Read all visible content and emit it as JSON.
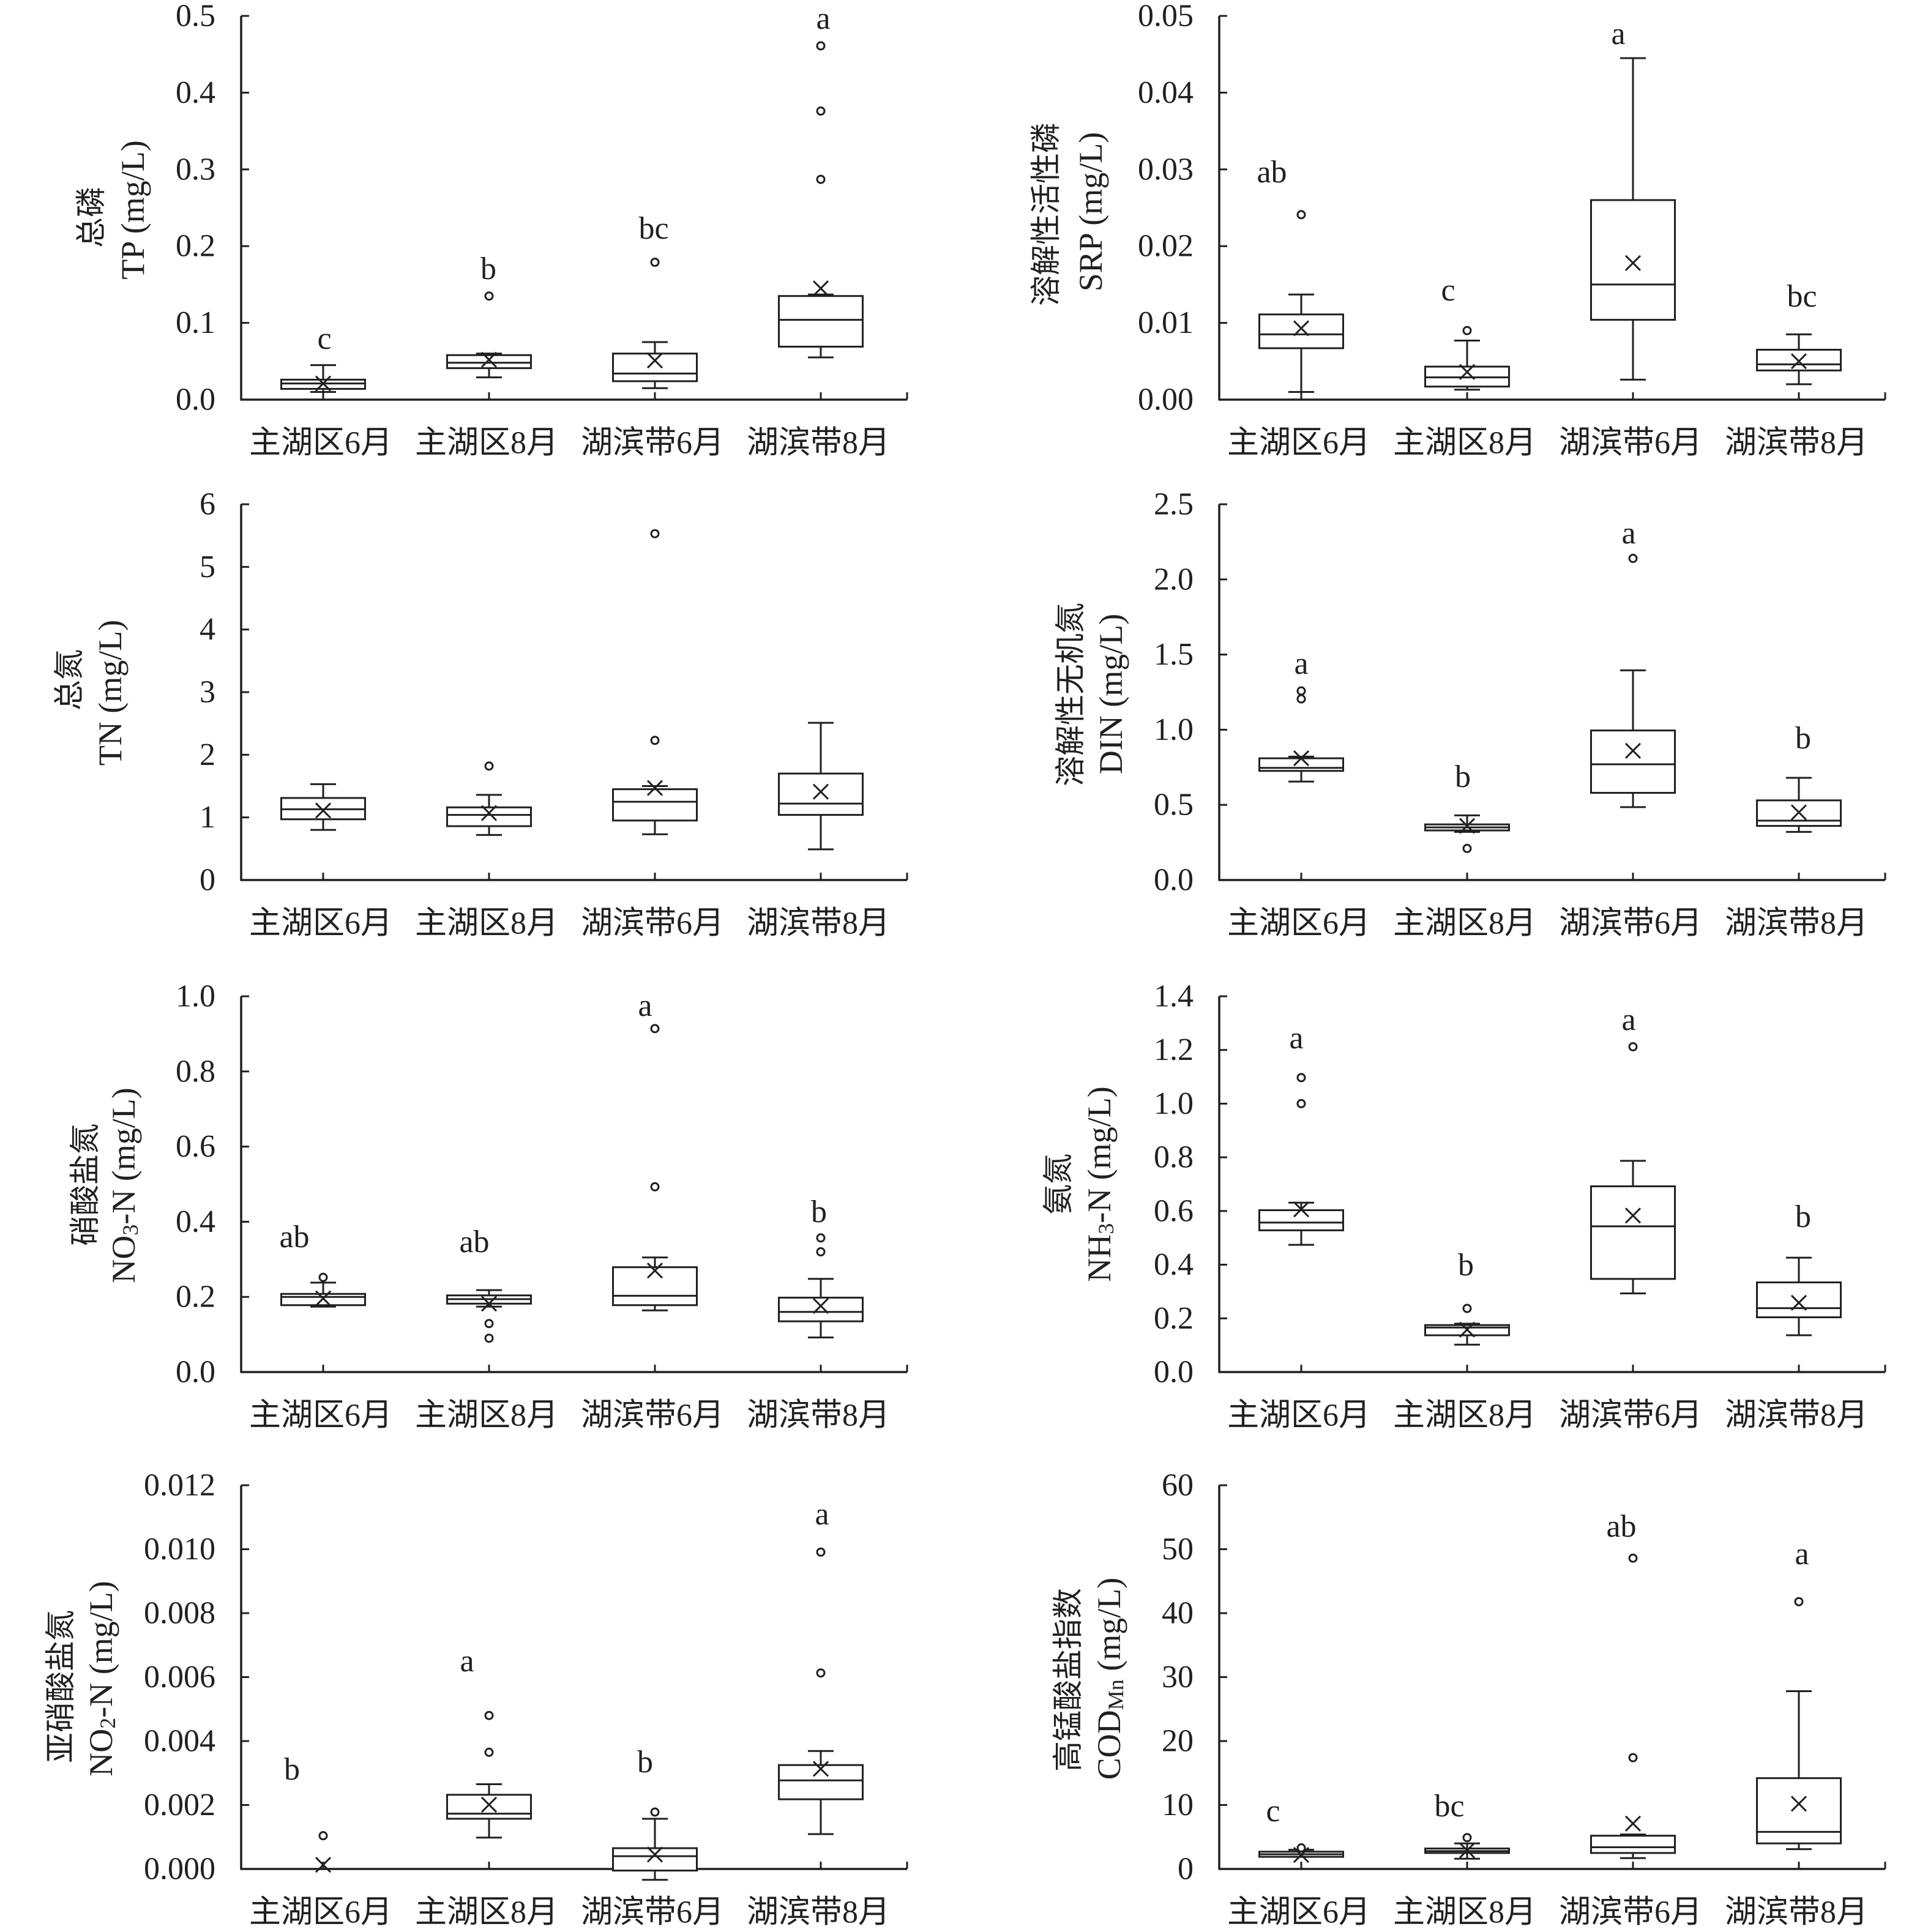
{
  "style": {
    "ink": "#231f20",
    "background": "#ffffff"
  },
  "chart_data": [
    {
      "type": "box",
      "ylabel_cn": "总磷",
      "ylabel_en": [
        {
          "t": "TP (mg/L)"
        }
      ],
      "ylim": [
        0,
        0.5
      ],
      "yticks": [
        0,
        0.1,
        0.2,
        0.3,
        0.4,
        0.5
      ],
      "ytick_labels": [
        "0.0",
        "0.1",
        "0.2",
        "0.3",
        "0.4",
        "0.5"
      ],
      "categories": [
        "主湖区6月",
        "主湖区8月",
        "湖滨带6月",
        "湖滨带8月"
      ],
      "boxes": [
        {
          "min": 0.01,
          "q1": 0.014,
          "median": 0.021,
          "q3": 0.026,
          "max": 0.045,
          "mean": 0.021,
          "outliers": [],
          "letter": "c"
        },
        {
          "min": 0.029,
          "q1": 0.041,
          "median": 0.048,
          "q3": 0.058,
          "max": 0.06,
          "mean": 0.052,
          "outliers": [
            0.135
          ],
          "letter": "b"
        },
        {
          "min": 0.015,
          "q1": 0.024,
          "median": 0.034,
          "q3": 0.06,
          "max": 0.075,
          "mean": 0.051,
          "outliers": [
            0.179
          ],
          "letter": "bc"
        },
        {
          "min": 0.055,
          "q1": 0.069,
          "median": 0.104,
          "q3": 0.135,
          "max": 0.137,
          "mean": 0.145,
          "outliers": [
            0.287,
            0.376,
            0.461
          ],
          "letter": "a"
        }
      ]
    },
    {
      "type": "box",
      "ylabel_cn": "溶解性活性磷",
      "ylabel_en": [
        {
          "t": "SRP (mg/L)"
        }
      ],
      "ylim": [
        0,
        0.05
      ],
      "yticks": [
        0,
        0.01,
        0.02,
        0.03,
        0.04,
        0.05
      ],
      "ytick_labels": [
        "0.00",
        "0.01",
        "0.02",
        "0.03",
        "0.04",
        "0.05"
      ],
      "categories": [
        "主湖区6月",
        "主湖区8月",
        "湖滨带6月",
        "湖滨带8月"
      ],
      "boxes": [
        {
          "min": 0.001,
          "q1": 0.0067,
          "median": 0.0085,
          "q3": 0.0111,
          "max": 0.0137,
          "mean": 0.0093,
          "outliers": [
            0.0241
          ],
          "letter": "ab"
        },
        {
          "min": 0.0013,
          "q1": 0.0017,
          "median": 0.0029,
          "q3": 0.0043,
          "max": 0.0077,
          "mean": 0.0036,
          "outliers": [
            0.009
          ],
          "letter": "c"
        },
        {
          "min": 0.0026,
          "q1": 0.0104,
          "median": 0.015,
          "q3": 0.026,
          "max": 0.0445,
          "mean": 0.0178,
          "outliers": [],
          "letter": "a"
        },
        {
          "min": 0.002,
          "q1": 0.0038,
          "median": 0.0046,
          "q3": 0.0065,
          "max": 0.0085,
          "mean": 0.005,
          "outliers": [],
          "letter": "bc"
        }
      ]
    },
    {
      "type": "box",
      "ylabel_cn": "总氮",
      "ylabel_en": [
        {
          "t": "TN (mg/L)"
        }
      ],
      "ylim": [
        0,
        6
      ],
      "yticks": [
        0,
        1,
        2,
        3,
        4,
        5,
        6
      ],
      "ytick_labels": [
        "0",
        "1",
        "2",
        "3",
        "4",
        "5",
        "6"
      ],
      "categories": [
        "主湖区6月",
        "主湖区8月",
        "湖滨带6月",
        "湖滨带8月"
      ],
      "boxes": [
        {
          "min": 0.8,
          "q1": 0.97,
          "median": 1.13,
          "q3": 1.31,
          "max": 1.53,
          "mean": 1.11,
          "outliers": []
        },
        {
          "min": 0.72,
          "q1": 0.86,
          "median": 1.04,
          "q3": 1.16,
          "max": 1.36,
          "mean": 1.07,
          "outliers": [
            1.82
          ]
        },
        {
          "min": 0.73,
          "q1": 0.95,
          "median": 1.25,
          "q3": 1.45,
          "max": 1.5,
          "mean": 1.47,
          "outliers": [
            2.23,
            5.53
          ]
        },
        {
          "min": 0.49,
          "q1": 1.04,
          "median": 1.22,
          "q3": 1.7,
          "max": 2.51,
          "mean": 1.41,
          "outliers": []
        }
      ]
    },
    {
      "type": "box",
      "ylabel_cn": "溶解性无机氮",
      "ylabel_en": [
        {
          "t": "DIN (mg/L)"
        }
      ],
      "ylim": [
        0,
        2.5
      ],
      "yticks": [
        0,
        0.5,
        1.0,
        1.5,
        2.0,
        2.5
      ],
      "ytick_labels": [
        "0.0",
        "0.5",
        "1.0",
        "1.5",
        "2.0",
        "2.5"
      ],
      "categories": [
        "主湖区6月",
        "主湖区8月",
        "湖滨带6月",
        "湖滨带8月"
      ],
      "boxes": [
        {
          "min": 0.655,
          "q1": 0.726,
          "median": 0.746,
          "q3": 0.81,
          "max": 0.821,
          "mean": 0.81,
          "outliers": [
            1.205,
            1.258
          ],
          "letter": "a"
        },
        {
          "min": 0.32,
          "q1": 0.33,
          "median": 0.35,
          "q3": 0.37,
          "max": 0.43,
          "mean": 0.36,
          "outliers": [
            0.21
          ],
          "letter": "b"
        },
        {
          "min": 0.485,
          "q1": 0.58,
          "median": 0.77,
          "q3": 0.995,
          "max": 1.395,
          "mean": 0.86,
          "outliers": [
            2.14
          ],
          "letter": "a"
        },
        {
          "min": 0.32,
          "q1": 0.36,
          "median": 0.395,
          "q3": 0.53,
          "max": 0.68,
          "mean": 0.45,
          "outliers": [],
          "letter": "b"
        }
      ]
    },
    {
      "type": "box",
      "ylabel_cn": "硝酸盐氮",
      "ylabel_en": [
        {
          "t": "NO"
        },
        {
          "t": "3",
          "sub": true
        },
        {
          "t": "-N (mg/L)"
        }
      ],
      "ylim": [
        0,
        1.0
      ],
      "yticks": [
        0,
        0.2,
        0.4,
        0.6,
        0.8,
        1.0
      ],
      "ytick_labels": [
        "0.0",
        "0.2",
        "0.4",
        "0.6",
        "0.8",
        "1.0"
      ],
      "categories": [
        "主湖区6月",
        "主湖区8月",
        "湖滨带6月",
        "湖滨带8月"
      ],
      "boxes": [
        {
          "min": 0.174,
          "q1": 0.178,
          "median": 0.2,
          "q3": 0.208,
          "max": 0.238,
          "mean": 0.196,
          "outliers": [
            0.252
          ],
          "letter": "ab"
        },
        {
          "min": 0.174,
          "q1": 0.182,
          "median": 0.194,
          "q3": 0.204,
          "max": 0.218,
          "mean": 0.182,
          "outliers": [
            0.129,
            0.09
          ],
          "letter": "ab"
        },
        {
          "min": 0.164,
          "q1": 0.178,
          "median": 0.203,
          "q3": 0.279,
          "max": 0.305,
          "mean": 0.27,
          "outliers": [
            0.493,
            0.914
          ],
          "letter": "a"
        },
        {
          "min": 0.092,
          "q1": 0.135,
          "median": 0.16,
          "q3": 0.198,
          "max": 0.248,
          "mean": 0.176,
          "outliers": [
            0.32,
            0.357
          ],
          "letter": "b"
        }
      ]
    },
    {
      "type": "box",
      "ylabel_cn": "氨氮",
      "ylabel_en": [
        {
          "t": "NH"
        },
        {
          "t": "3",
          "sub": true
        },
        {
          "t": "-N (mg/L)"
        }
      ],
      "ylim": [
        0,
        1.4
      ],
      "yticks": [
        0,
        0.2,
        0.4,
        0.6,
        0.8,
        1.0,
        1.2,
        1.4
      ],
      "ytick_labels": [
        "0.0",
        "0.2",
        "0.4",
        "0.6",
        "0.8",
        "1.0",
        "1.2",
        "1.4"
      ],
      "categories": [
        "主湖区6月",
        "主湖区8月",
        "湖滨带6月",
        "湖滨带8月"
      ],
      "boxes": [
        {
          "min": 0.474,
          "q1": 0.528,
          "median": 0.557,
          "q3": 0.603,
          "max": 0.631,
          "mean": 0.606,
          "outliers": [
            1.0,
            1.097
          ],
          "letter": "a"
        },
        {
          "min": 0.102,
          "q1": 0.137,
          "median": 0.166,
          "q3": 0.175,
          "max": 0.18,
          "mean": 0.158,
          "outliers": [
            0.237
          ],
          "letter": "b"
        },
        {
          "min": 0.293,
          "q1": 0.347,
          "median": 0.543,
          "q3": 0.692,
          "max": 0.787,
          "mean": 0.583,
          "outliers": [
            1.212
          ],
          "letter": "a"
        },
        {
          "min": 0.137,
          "q1": 0.204,
          "median": 0.238,
          "q3": 0.334,
          "max": 0.426,
          "mean": 0.258,
          "outliers": [],
          "letter": "b"
        }
      ]
    },
    {
      "type": "box",
      "ylabel_cn": "亚硝酸盐氮",
      "ylabel_en": [
        {
          "t": "NO"
        },
        {
          "t": "2",
          "sub": true
        },
        {
          "t": "-N (mg/L)"
        }
      ],
      "ylim": [
        0,
        0.012
      ],
      "yticks": [
        0,
        0.002,
        0.004,
        0.006,
        0.008,
        0.01,
        0.012
      ],
      "ytick_labels": [
        "0.000",
        "0.002",
        "0.004",
        "0.006",
        "0.008",
        "0.010",
        "0.012"
      ],
      "categories": [
        "主湖区6月",
        "主湖区8月",
        "湖滨带6月",
        "湖滨带8月"
      ],
      "boxes": [
        {
          "min": 0,
          "q1": 0,
          "median": 0,
          "q3": 0,
          "max": 0,
          "mean": 0.00013,
          "outliers": [
            0.00104
          ],
          "letter": "b"
        },
        {
          "min": 0.00098,
          "q1": 0.00157,
          "median": 0.00173,
          "q3": 0.00232,
          "max": 0.00265,
          "mean": 0.00201,
          "outliers": [
            0.00365,
            0.0048
          ],
          "letter": "a"
        },
        {
          "min": -0.00034,
          "q1": -5e-05,
          "median": 0.0004,
          "q3": 0.00065,
          "max": 0.00157,
          "mean": 0.00045,
          "outliers": [
            0.00178
          ],
          "letter": "b"
        },
        {
          "min": 0.00109,
          "q1": 0.00218,
          "median": 0.00277,
          "q3": 0.00325,
          "max": 0.00369,
          "mean": 0.00313,
          "outliers": [
            0.00613,
            0.00991
          ],
          "letter": "a"
        }
      ]
    },
    {
      "type": "box",
      "ylabel_cn": "高锰酸盐指数",
      "ylabel_en": [
        {
          "t": "COD"
        },
        {
          "t": "Mn",
          "sub": true
        },
        {
          "t": " (mg/L)"
        }
      ],
      "ylim": [
        0,
        60
      ],
      "yticks": [
        0,
        10,
        20,
        30,
        40,
        50,
        60
      ],
      "ytick_labels": [
        "0",
        "10",
        "20",
        "30",
        "40",
        "50",
        "60"
      ],
      "categories": [
        "主湖区6月",
        "主湖区8月",
        "湖滨带6月",
        "湖滨带8月"
      ],
      "boxes": [
        {
          "min": 1.9,
          "q1": 1.9,
          "median": 2.3,
          "q3": 2.7,
          "max": 3.0,
          "mean": 2.2,
          "outliers": [
            3.3
          ],
          "letter": "c"
        },
        {
          "min": 1.6,
          "q1": 2.5,
          "median": 2.8,
          "q3": 3.2,
          "max": 4.0,
          "mean": 2.9,
          "outliers": [
            4.9
          ],
          "letter": "bc"
        },
        {
          "min": 1.7,
          "q1": 2.5,
          "median": 3.4,
          "q3": 5.2,
          "max": 5.4,
          "mean": 7.1,
          "outliers": [
            17.4,
            48.6
          ],
          "letter": "ab"
        },
        {
          "min": 3.1,
          "q1": 4.0,
          "median": 5.8,
          "q3": 14.2,
          "max": 27.8,
          "mean": 10.2,
          "outliers": [
            41.8
          ],
          "letter": "a"
        }
      ]
    }
  ]
}
